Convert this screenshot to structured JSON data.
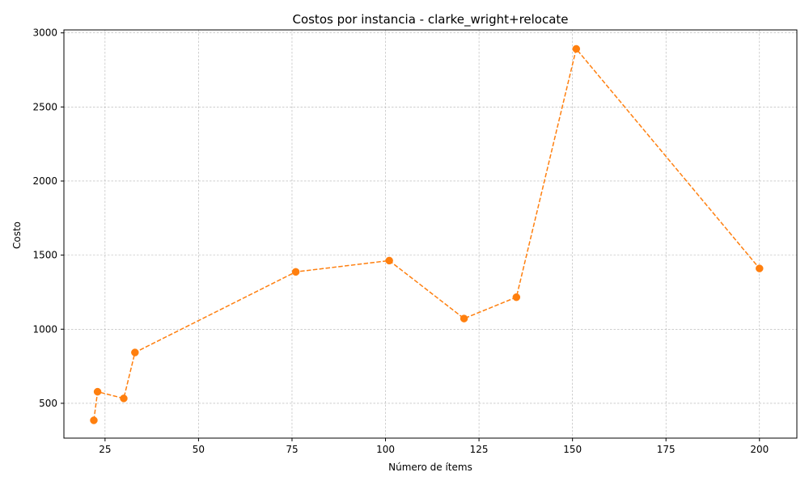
{
  "chart_data": {
    "type": "line",
    "title": "Costos por instancia - clarke_wright+relocate",
    "xlabel": "Número de ítems",
    "ylabel": "Costo",
    "x": [
      22,
      23,
      30,
      33,
      76,
      101,
      121,
      135,
      151,
      200
    ],
    "series": [
      {
        "values": [
          385,
          578,
          533,
          843,
          1387,
          1463,
          1072,
          1216,
          2892,
          1410
        ],
        "color": "#ff7f0e",
        "line_style": "dashed",
        "marker": "circle"
      }
    ],
    "xlim": [
      14,
      210
    ],
    "ylim": [
      265,
      3020
    ],
    "xticks": [
      25,
      50,
      75,
      100,
      125,
      150,
      175,
      200
    ],
    "yticks": [
      500,
      1000,
      1500,
      2000,
      2500,
      3000
    ],
    "grid": true,
    "legend": "none"
  }
}
